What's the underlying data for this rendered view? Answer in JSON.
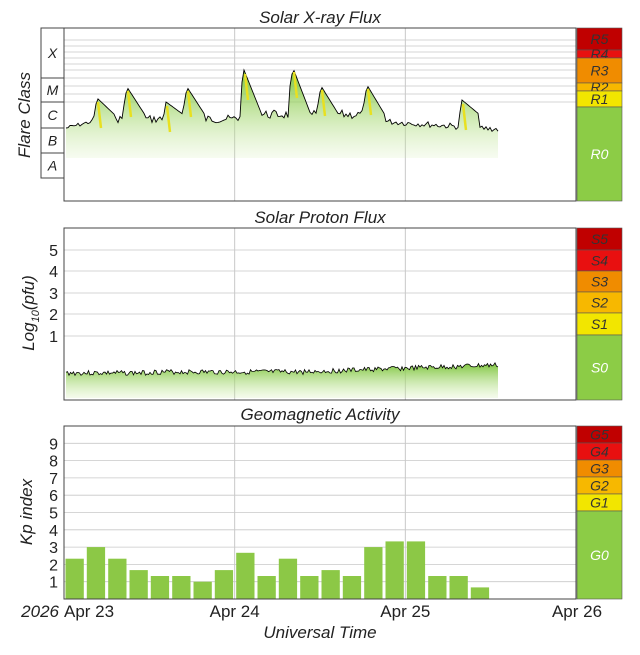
{
  "xray": {
    "title": "Solar X-ray Flux",
    "ylabel": "Flare Class",
    "classes": [
      "X",
      "M",
      "C",
      "B",
      "A"
    ],
    "scale": [
      {
        "label": "R5",
        "color": "#c00000"
      },
      {
        "label": "R4",
        "color": "#e81010"
      },
      {
        "label": "R3",
        "color": "#f08c00"
      },
      {
        "label": "R2",
        "color": "#f7b800"
      },
      {
        "label": "R1",
        "color": "#f2e600"
      },
      {
        "label": "R0",
        "color": "#8ccc46"
      }
    ]
  },
  "proton": {
    "title": "Solar Proton Flux",
    "ylabel_main": "Log",
    "ylabel_sub": "10",
    "ylabel_tail": "(pfu)",
    "ticks": [
      "5",
      "4",
      "3",
      "2",
      "1"
    ],
    "scale": [
      {
        "label": "S5",
        "color": "#c00000"
      },
      {
        "label": "S4",
        "color": "#e81010"
      },
      {
        "label": "S3",
        "color": "#f08c00"
      },
      {
        "label": "S2",
        "color": "#f7b800"
      },
      {
        "label": "S1",
        "color": "#f2e600"
      },
      {
        "label": "S0",
        "color": "#8ccc46"
      }
    ]
  },
  "geo": {
    "title": "Geomagnetic Activity",
    "ylabel": "Kp index",
    "ticks": [
      "9",
      "8",
      "7",
      "6",
      "5",
      "4",
      "3",
      "2",
      "1"
    ],
    "scale": [
      {
        "label": "G5",
        "color": "#c00000"
      },
      {
        "label": "G4",
        "color": "#e81010"
      },
      {
        "label": "G3",
        "color": "#f08c00"
      },
      {
        "label": "G2",
        "color": "#f7b800"
      },
      {
        "label": "G1",
        "color": "#f2e600"
      },
      {
        "label": "G0",
        "color": "#8ccc46"
      }
    ]
  },
  "xaxis": {
    "year": "2026",
    "ticks": [
      "Apr 23",
      "Apr 24",
      "Apr 25",
      "Apr 26"
    ],
    "label": "Universal Time"
  },
  "colors": {
    "bar": "#8cc846",
    "line": "#000000",
    "grid": "#c8c8c8"
  },
  "chart_data": [
    {
      "type": "area",
      "title": "Solar X-ray Flux",
      "ylabel": "Flare Class",
      "y_scale": "log (flare class A–X)",
      "x_range": [
        "2026-04-23 00:00",
        "2026-04-26 00:00"
      ],
      "x_days": [
        0.0,
        0.1,
        0.14,
        0.36,
        0.42,
        0.5,
        0.7,
        1.05,
        1.35,
        1.55,
        1.78,
        2.05,
        2.33,
        2.6
      ],
      "class_level": [
        2.3,
        3.5,
        3.0,
        3.7,
        3.2,
        3.3,
        3.4,
        4.2,
        4.0,
        3.8,
        3.4,
        3.2,
        3.0,
        2.9
      ]
    },
    {
      "type": "area",
      "title": "Solar Proton Flux",
      "ylabel": "Log10(pfu)",
      "x_range": [
        "2026-04-23 00:00",
        "2026-04-26 00:00"
      ],
      "ylim": [
        -1.5,
        6
      ],
      "x_days": [
        0.0,
        0.5,
        1.0,
        1.5,
        2.0,
        2.25,
        2.5
      ],
      "log10_pfu": [
        -0.15,
        -0.2,
        -0.13,
        0.05,
        0.05,
        0.15,
        0.2
      ]
    },
    {
      "type": "bar",
      "title": "Geomagnetic Activity",
      "ylabel": "Kp index",
      "ylim": [
        0,
        10
      ],
      "grid": true,
      "x_range": [
        "2026-04-23 00:00",
        "2026-04-26 00:00"
      ],
      "interval_hours": 3,
      "values": [
        2.33,
        3.0,
        2.33,
        1.67,
        1.33,
        1.33,
        1.0,
        1.67,
        2.67,
        1.33,
        2.33,
        1.33,
        1.67,
        1.33,
        3.0,
        3.33,
        3.33,
        1.33,
        1.33,
        0.67
      ]
    }
  ]
}
